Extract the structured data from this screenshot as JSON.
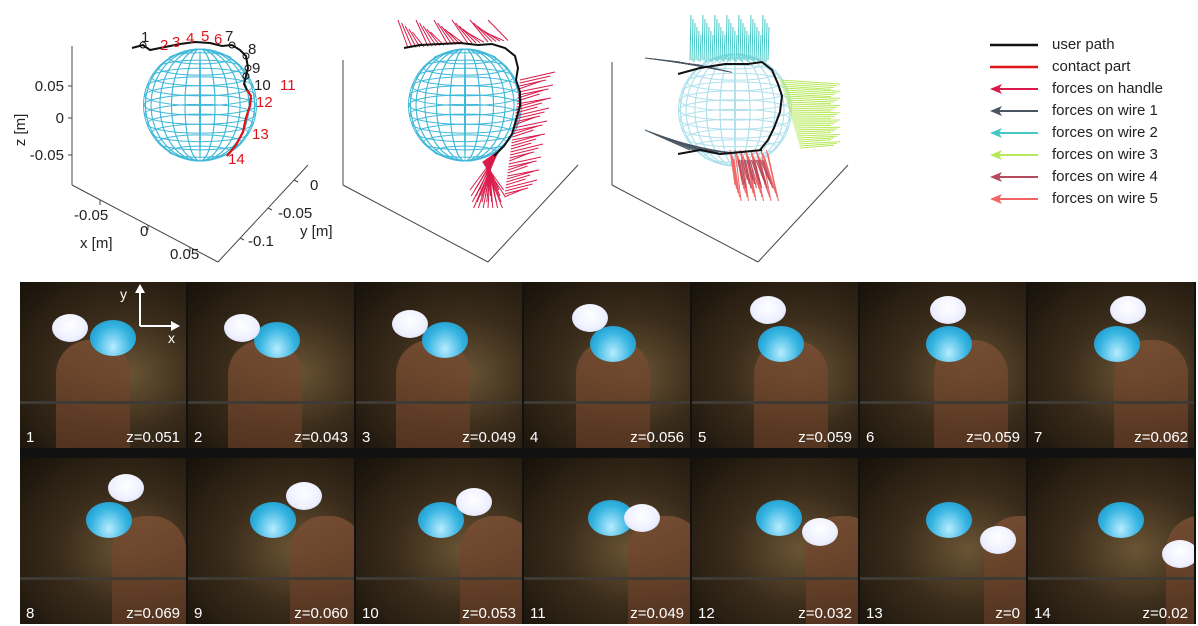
{
  "plot_axes": {
    "z_label": "z [m]",
    "x_label": "x [m]",
    "y_label": "y [m]",
    "z_ticks": [
      "0.05",
      "0",
      "-0.05"
    ],
    "x_ticks": [
      "-0.05",
      "0",
      "0.05"
    ],
    "y_ticks": [
      "0",
      "-0.05",
      "-0.1"
    ]
  },
  "path_labels": [
    "1",
    "2",
    "3",
    "4",
    "5",
    "6",
    "7",
    "8",
    "9",
    "10",
    "11",
    "12",
    "13",
    "14"
  ],
  "legend": [
    {
      "label": "user path",
      "color": "#111111",
      "kind": "line"
    },
    {
      "label": "contact part",
      "color": "#e0141b",
      "kind": "line"
    },
    {
      "label": "forces on handle",
      "color": "#d81b4a",
      "kind": "arrow"
    },
    {
      "label": "forces on wire 1",
      "color": "#4a5663",
      "kind": "arrow"
    },
    {
      "label": "forces on wire 2",
      "color": "#45c7c5",
      "kind": "arrow"
    },
    {
      "label": "forces on wire 3",
      "color": "#b6e95a",
      "kind": "arrow"
    },
    {
      "label": "forces on wire 4",
      "color": "#b54a5c",
      "kind": "arrow"
    },
    {
      "label": "forces on wire 5",
      "color": "#f26464",
      "kind": "arrow"
    }
  ],
  "colors": {
    "sphere": "#3fb8d8",
    "path": "#111111",
    "contact": "#e0141b",
    "labels_red": "#e0141b"
  },
  "frames": [
    {
      "num": "1",
      "z": "z=0.051"
    },
    {
      "num": "2",
      "z": "z=0.043"
    },
    {
      "num": "3",
      "z": "z=0.049"
    },
    {
      "num": "4",
      "z": "z=0.056"
    },
    {
      "num": "5",
      "z": "z=0.059"
    },
    {
      "num": "6",
      "z": "z=0.059"
    },
    {
      "num": "7",
      "z": "z=0.062"
    },
    {
      "num": "8",
      "z": "z=0.069"
    },
    {
      "num": "9",
      "z": "z=0.060"
    },
    {
      "num": "10",
      "z": "z=0.053"
    },
    {
      "num": "11",
      "z": "z=0.049"
    },
    {
      "num": "12",
      "z": "z=0.032"
    },
    {
      "num": "13",
      "z": "z=0"
    },
    {
      "num": "14",
      "z": "z=0.02"
    }
  ],
  "frame_axes": {
    "x": "x",
    "y": "y"
  }
}
